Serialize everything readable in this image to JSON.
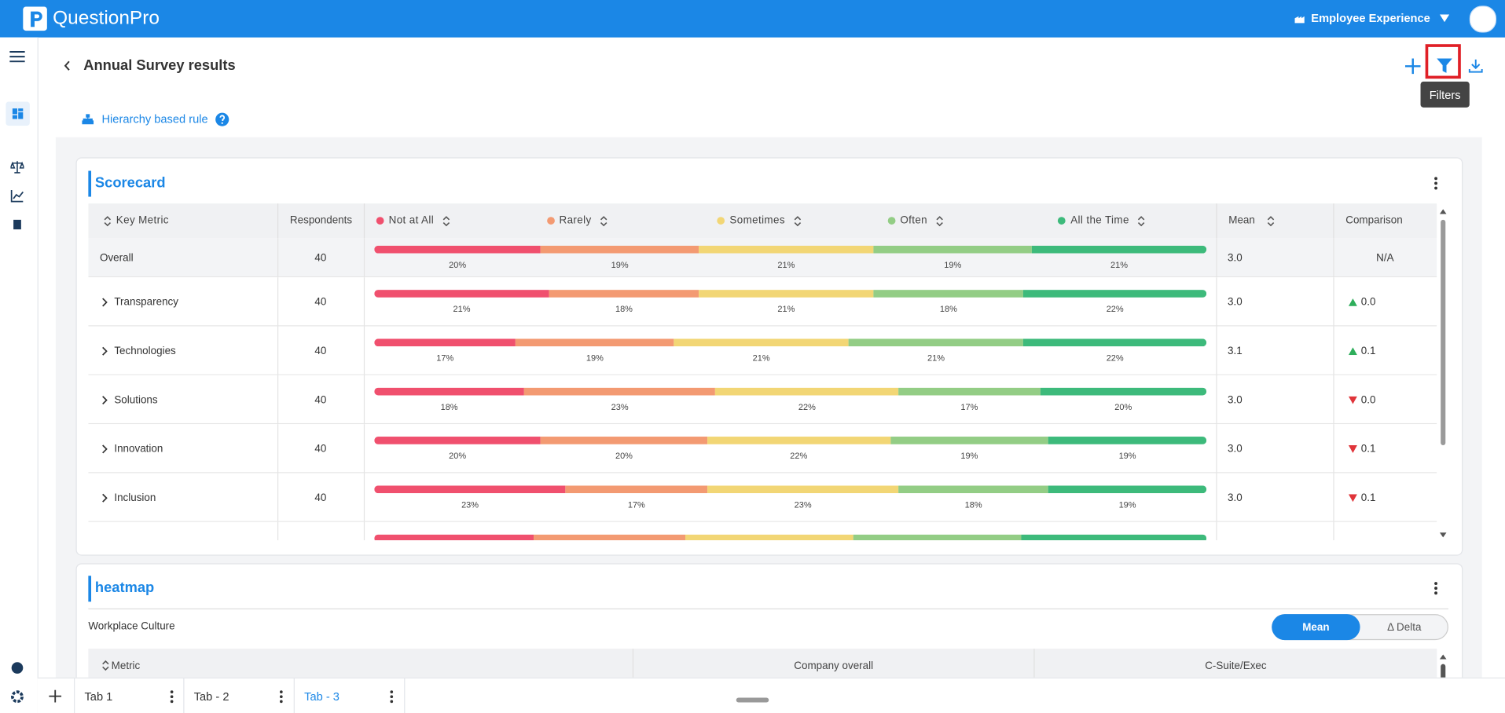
{
  "header": {
    "brand": "QuestionPro",
    "workspace": "Employee Experience"
  },
  "page": {
    "title": "Annual Survey results",
    "rule": "Hierarchy based rule",
    "tooltip": "Filters"
  },
  "scorecard": {
    "title": "Scorecard",
    "columns": {
      "metric": "Key Metric",
      "respondents": "Respondents",
      "mean": "Mean",
      "comparison": "Comparison"
    },
    "scale": [
      {
        "name": "Not at All",
        "color": "#f0506e"
      },
      {
        "name": "Rarely",
        "color": "#f39a72"
      },
      {
        "name": "Sometimes",
        "color": "#f2d675"
      },
      {
        "name": "Often",
        "color": "#93cd85"
      },
      {
        "name": "All the Time",
        "color": "#3dba7b"
      }
    ],
    "rows": [
      {
        "name": "Overall",
        "respondents": "40",
        "values": [
          20,
          19,
          21,
          19,
          21
        ],
        "value_labels": [
          "20%",
          "19%",
          "21%",
          "19%",
          "21%"
        ],
        "mean": "3.0",
        "comparison": "N/A"
      },
      {
        "name": "Transparency",
        "respondents": "40",
        "values": [
          21,
          18,
          21,
          18,
          22
        ],
        "value_labels": [
          "21%",
          "18%",
          "21%",
          "18%",
          "22%"
        ],
        "mean": "3.0",
        "comparison": "0.0",
        "trend": "up"
      },
      {
        "name": "Technologies",
        "respondents": "40",
        "values": [
          17,
          19,
          21,
          21,
          22
        ],
        "value_labels": [
          "17%",
          "19%",
          "21%",
          "21%",
          "22%"
        ],
        "mean": "3.1",
        "comparison": "0.1",
        "trend": "up"
      },
      {
        "name": "Solutions",
        "respondents": "40",
        "values": [
          18,
          23,
          22,
          17,
          20
        ],
        "value_labels": [
          "18%",
          "23%",
          "22%",
          "17%",
          "20%"
        ],
        "mean": "3.0",
        "comparison": "0.0",
        "trend": "down"
      },
      {
        "name": "Innovation",
        "respondents": "40",
        "values": [
          20,
          20,
          22,
          19,
          19
        ],
        "value_labels": [
          "20%",
          "20%",
          "22%",
          "19%",
          "19%"
        ],
        "mean": "3.0",
        "comparison": "0.1",
        "trend": "down"
      },
      {
        "name": "Inclusion",
        "respondents": "40",
        "values": [
          23,
          17,
          23,
          18,
          19
        ],
        "value_labels": [
          "23%",
          "17%",
          "23%",
          "18%",
          "19%"
        ],
        "mean": "3.0",
        "comparison": "0.1",
        "trend": "down"
      },
      {
        "values": [
          19,
          18,
          20,
          20,
          22
        ]
      }
    ]
  },
  "heatmap": {
    "title": "heatmap",
    "subtitle": "Workplace Culture",
    "toggle": [
      "Mean",
      "Δ Delta"
    ],
    "toggle_active": 0,
    "columns": [
      "Metric",
      "Company overall",
      "C-Suite/Exec"
    ]
  },
  "tabs": {
    "items": [
      "Tab 1",
      "Tab - 2",
      "Tab - 3"
    ],
    "active": 2
  }
}
